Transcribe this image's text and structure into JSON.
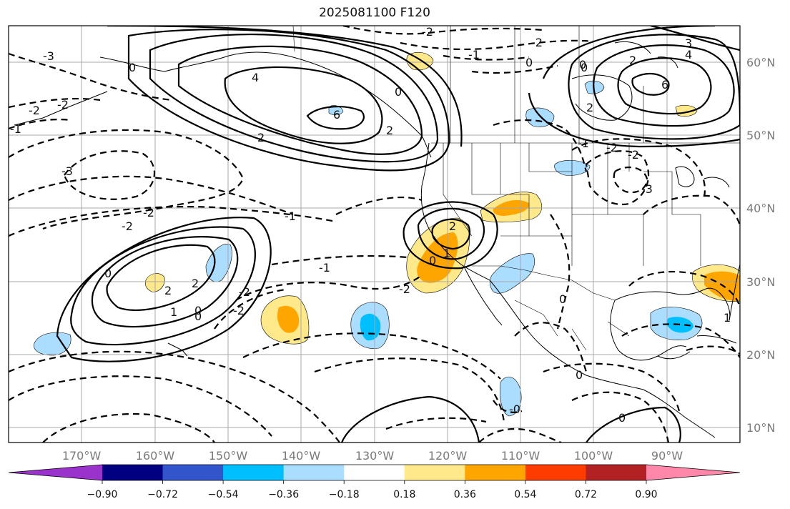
{
  "title": "2025081100 F120",
  "lat_labels": [
    "60°N",
    "50°N",
    "40°N",
    "30°N",
    "20°N",
    "10°N"
  ],
  "lon_labels": [
    "170°W",
    "160°W",
    "150°W",
    "140°W",
    "130°W",
    "120°W",
    "110°W",
    "100°W",
    "90°W"
  ],
  "colorbar": {
    "colors": [
      "#9933cc",
      "#000080",
      "#3355cc",
      "#00bfff",
      "#aaddff",
      "#ffffff",
      "#ffe98a",
      "#ffa500",
      "#ff3c00",
      "#b22222",
      "#ff88aa"
    ],
    "ticks": [
      "−0.90",
      "−0.72",
      "−0.54",
      "−0.36",
      "−0.18",
      "0.18",
      "0.36",
      "0.54",
      "0.72",
      "0.90"
    ]
  },
  "contour_labels": {
    "aleutian_low": [
      "4",
      "6",
      "2",
      "0",
      "0",
      "0",
      "2"
    ],
    "hudson_low": [
      "3",
      "4",
      "6",
      "2",
      "0",
      "2"
    ],
    "sw_low": [
      "2",
      "0",
      "1"
    ],
    "hawaii_low": [
      "0",
      "2",
      "2",
      "1",
      "0"
    ],
    "dashed": [
      "-2",
      "-2",
      "-1",
      "-3",
      "-3",
      "-2",
      "-1",
      "-2",
      "-2",
      "-2",
      "-1",
      "-2",
      "-3",
      "-2",
      "-2",
      "-2",
      "-1",
      "-2",
      "0",
      "0",
      "0",
      "-1",
      "0",
      "1",
      "0",
      "-0"
    ]
  }
}
